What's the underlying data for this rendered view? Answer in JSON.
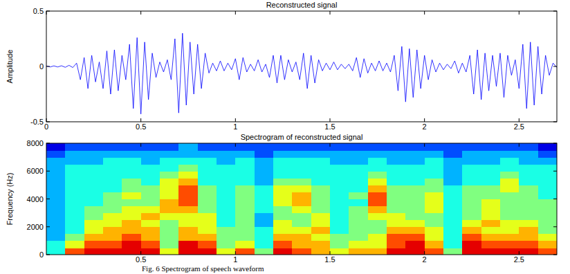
{
  "chart_data": [
    {
      "type": "line",
      "title": "Reconstructed signal",
      "y_label": "Amplitude",
      "color": "#0000ff",
      "xlim": [
        0,
        2.7
      ],
      "ylim": [
        -0.5,
        0.5
      ],
      "xticks": [
        0,
        0.5,
        1,
        1.5,
        2,
        2.5
      ],
      "yticks": [
        -0.5,
        0,
        0.5
      ],
      "x": [
        0,
        0.02,
        0.04,
        0.06,
        0.08,
        0.1,
        0.12,
        0.14,
        0.16,
        0.18,
        0.2,
        0.22,
        0.24,
        0.26,
        0.28,
        0.3,
        0.32,
        0.34,
        0.36,
        0.38,
        0.4,
        0.42,
        0.44,
        0.46,
        0.48,
        0.5,
        0.52,
        0.54,
        0.56,
        0.58,
        0.6,
        0.62,
        0.64,
        0.66,
        0.68,
        0.7,
        0.72,
        0.74,
        0.76,
        0.78,
        0.8,
        0.82,
        0.84,
        0.86,
        0.88,
        0.9,
        0.92,
        0.94,
        0.96,
        0.98,
        1,
        1.02,
        1.04,
        1.06,
        1.08,
        1.1,
        1.12,
        1.14,
        1.16,
        1.18,
        1.2,
        1.22,
        1.24,
        1.26,
        1.28,
        1.3,
        1.32,
        1.34,
        1.36,
        1.38,
        1.4,
        1.42,
        1.44,
        1.46,
        1.48,
        1.5,
        1.52,
        1.54,
        1.56,
        1.58,
        1.6,
        1.62,
        1.64,
        1.66,
        1.68,
        1.7,
        1.72,
        1.74,
        1.76,
        1.78,
        1.8,
        1.82,
        1.84,
        1.86,
        1.88,
        1.9,
        1.92,
        1.94,
        1.96,
        1.98,
        2,
        2.02,
        2.04,
        2.06,
        2.08,
        2.1,
        2.12,
        2.14,
        2.16,
        2.18,
        2.2,
        2.22,
        2.24,
        2.26,
        2.28,
        2.3,
        2.32,
        2.34,
        2.36,
        2.38,
        2.4,
        2.42,
        2.44,
        2.46,
        2.48,
        2.5,
        2.52,
        2.54,
        2.56,
        2.58,
        2.6,
        2.62,
        2.64,
        2.66,
        2.68,
        2.7
      ],
      "values": [
        0.005,
        -0.005,
        0.005,
        -0.005,
        0.006,
        -0.008,
        0.01,
        -0.01,
        0.03,
        -0.12,
        0.08,
        -0.2,
        0.1,
        -0.14,
        0.04,
        -0.2,
        0.14,
        -0.25,
        0.15,
        -0.22,
        0.1,
        -0.12,
        0.2,
        -0.38,
        0.26,
        -0.43,
        0.22,
        -0.3,
        0.12,
        -0.1,
        0.04,
        -0.05,
        0.06,
        -0.12,
        0.25,
        -0.42,
        0.3,
        -0.35,
        0.22,
        -0.25,
        0.2,
        -0.2,
        0.12,
        -0.06,
        0.03,
        -0.04,
        0.05,
        -0.04,
        0.03,
        -0.03,
        0.07,
        -0.12,
        0.08,
        -0.05,
        0.02,
        -0.04,
        0.06,
        -0.05,
        0.02,
        -0.1,
        0.1,
        -0.15,
        0.1,
        -0.12,
        0.06,
        -0.05,
        0.04,
        -0.12,
        0.12,
        -0.2,
        0.1,
        -0.15,
        0.06,
        -0.04,
        0.03,
        -0.03,
        0.04,
        -0.03,
        0.02,
        -0.02,
        0.02,
        -0.04,
        0.08,
        -0.1,
        0.07,
        -0.06,
        0.03,
        -0.04,
        0.05,
        -0.04,
        0.03,
        -0.05,
        0.1,
        -0.22,
        0.18,
        -0.32,
        0.16,
        -0.28,
        0.15,
        -0.2,
        0.1,
        -0.12,
        0.06,
        -0.05,
        0.03,
        -0.03,
        0.02,
        -0.02,
        0.05,
        -0.06,
        0.03,
        -0.05,
        0.1,
        -0.25,
        0.15,
        -0.3,
        0.12,
        -0.22,
        0.1,
        -0.18,
        0.12,
        -0.28,
        0.1,
        -0.08,
        0.06,
        -0.2,
        0.2,
        -0.38,
        0.22,
        -0.35,
        0.18,
        -0.25,
        0.1,
        -0.08,
        0.03,
        -0.01
      ]
    },
    {
      "type": "heatmap",
      "title": "Spectrogram of reconstructed signal",
      "y_label": "Frequency (Hz)",
      "xlim": [
        0,
        2.7
      ],
      "ylim": [
        0,
        8000
      ],
      "xticks": [
        0.5,
        1,
        1.5,
        2,
        2.5
      ],
      "yticks": [
        0,
        2000,
        4000,
        6000,
        8000
      ],
      "xbins": [
        0,
        0.1,
        0.2,
        0.3,
        0.4,
        0.5,
        0.6,
        0.7,
        0.8,
        0.9,
        1,
        1.1,
        1.2,
        1.3,
        1.4,
        1.5,
        1.6,
        1.7,
        1.8,
        1.9,
        2,
        2.1,
        2.2,
        2.3,
        2.4,
        2.5,
        2.6,
        2.7
      ],
      "ybins": [
        0,
        500,
        1000,
        1500,
        2000,
        2500,
        3000,
        3500,
        4000,
        4500,
        5000,
        5500,
        6000,
        6500,
        7000,
        7500,
        8000
      ],
      "color_range": [
        0,
        10
      ],
      "cells": [
        [
          4,
          4,
          3,
          3,
          3,
          3,
          3,
          3,
          3,
          3,
          3,
          3,
          3,
          3,
          2,
          1
        ],
        [
          8,
          6,
          5,
          4,
          4,
          4,
          4,
          4,
          4,
          4,
          4,
          4,
          4,
          3,
          3,
          2
        ],
        [
          9,
          8,
          7,
          6,
          6,
          5,
          5,
          4,
          4,
          4,
          4,
          4,
          4,
          3,
          3,
          2
        ],
        [
          9,
          8,
          7,
          7,
          6,
          6,
          5,
          5,
          5,
          4,
          4,
          4,
          4,
          4,
          3,
          2
        ],
        [
          9,
          9,
          8,
          7,
          7,
          6,
          6,
          5,
          6,
          5,
          5,
          4,
          4,
          4,
          3,
          2
        ],
        [
          9,
          8,
          7,
          7,
          6,
          7,
          6,
          5,
          5,
          5,
          4,
          4,
          4,
          3,
          3,
          2
        ],
        [
          6,
          5,
          5,
          5,
          5,
          6,
          7,
          7,
          6,
          6,
          6,
          5,
          4,
          4,
          3,
          2
        ],
        [
          9,
          9,
          7,
          7,
          6,
          6,
          7,
          8,
          8,
          8,
          7,
          6,
          5,
          4,
          3,
          3
        ],
        [
          9,
          8,
          7,
          6,
          6,
          6,
          5,
          5,
          5,
          5,
          4,
          4,
          4,
          4,
          3,
          2
        ],
        [
          6,
          5,
          5,
          5,
          4,
          4,
          4,
          4,
          4,
          4,
          4,
          4,
          4,
          3,
          3,
          2
        ],
        [
          8,
          6,
          5,
          5,
          5,
          5,
          5,
          5,
          5,
          5,
          4,
          4,
          4,
          4,
          3,
          2
        ],
        [
          5,
          4,
          4,
          4,
          3,
          3,
          4,
          4,
          4,
          4,
          3,
          3,
          3,
          3,
          2,
          2
        ],
        [
          9,
          8,
          7,
          6,
          6,
          5,
          5,
          6,
          6,
          6,
          5,
          4,
          4,
          4,
          3,
          2
        ],
        [
          8,
          7,
          7,
          6,
          5,
          5,
          6,
          7,
          7,
          6,
          5,
          4,
          4,
          4,
          3,
          2
        ],
        [
          7,
          7,
          6,
          7,
          6,
          6,
          5,
          5,
          5,
          5,
          4,
          4,
          4,
          4,
          3,
          2
        ],
        [
          6,
          5,
          5,
          4,
          4,
          4,
          4,
          4,
          4,
          4,
          4,
          4,
          4,
          3,
          3,
          2
        ],
        [
          7,
          6,
          5,
          5,
          5,
          5,
          5,
          4,
          5,
          4,
          4,
          4,
          4,
          3,
          3,
          2
        ],
        [
          7,
          6,
          6,
          5,
          5,
          6,
          7,
          8,
          8,
          7,
          6,
          5,
          4,
          4,
          3,
          2
        ],
        [
          9,
          8,
          8,
          7,
          6,
          6,
          5,
          5,
          5,
          5,
          4,
          4,
          4,
          3,
          3,
          2
        ],
        [
          9,
          9,
          8,
          7,
          6,
          5,
          5,
          5,
          5,
          5,
          4,
          4,
          4,
          3,
          3,
          2
        ],
        [
          8,
          7,
          6,
          6,
          5,
          5,
          6,
          6,
          6,
          5,
          5,
          4,
          4,
          4,
          3,
          2
        ],
        [
          5,
          4,
          4,
          4,
          4,
          4,
          4,
          4,
          4,
          4,
          3,
          3,
          3,
          3,
          2,
          2
        ],
        [
          9,
          9,
          8,
          7,
          6,
          5,
          5,
          5,
          5,
          5,
          4,
          4,
          4,
          3,
          3,
          2
        ],
        [
          9,
          8,
          7,
          6,
          7,
          6,
          6,
          6,
          5,
          5,
          4,
          4,
          4,
          3,
          3,
          2
        ],
        [
          9,
          8,
          7,
          6,
          6,
          5,
          5,
          5,
          5,
          6,
          6,
          5,
          4,
          4,
          3,
          2
        ],
        [
          9,
          8,
          7,
          7,
          6,
          5,
          5,
          5,
          5,
          5,
          4,
          4,
          4,
          3,
          3,
          2
        ],
        [
          8,
          7,
          6,
          5,
          5,
          5,
          5,
          5,
          4,
          4,
          4,
          4,
          4,
          3,
          2,
          1
        ]
      ]
    }
  ],
  "caption": "Fig. 6 Spectrogram of speech waveform"
}
